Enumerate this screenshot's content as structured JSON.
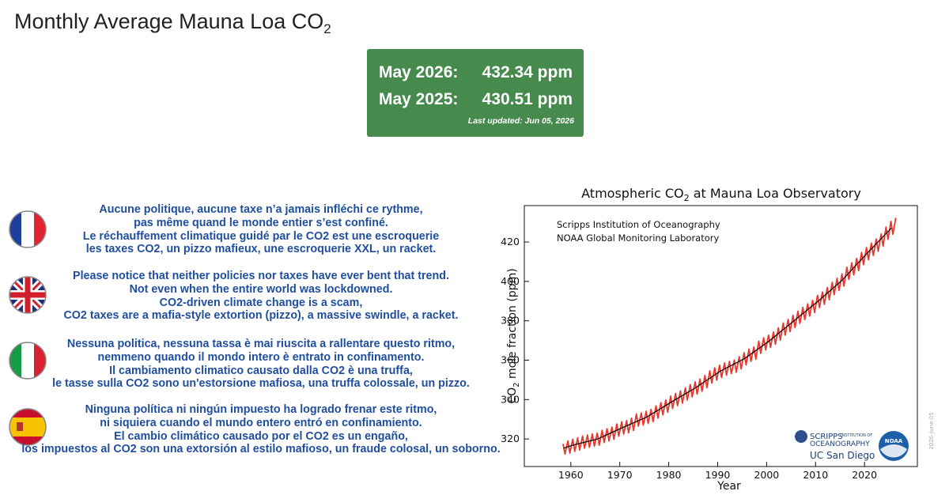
{
  "header": {
    "title": [
      "Monthly Average Mauna Loa CO",
      "2"
    ]
  },
  "status_box": {
    "rows": [
      [
        "May 2026:",
        "432.34 ppm"
      ],
      [
        "May 2025:",
        "430.51 ppm"
      ]
    ],
    "updated": "Last updated: Jun 05, 2026"
  },
  "messages": [
    [
      "Aucune politique, aucune taxe n’a jamais infléchi ce rythme,",
      "pas même quand le monde entier s’est confiné.",
      "Le réchauffement climatique guidé par le CO2 est une escroquerie",
      "les taxes CO2, un pizzo mafieux, une escroquerie XXL, un racket."
    ],
    [
      "Please notice that neither policies nor taxes have ever bent that trend.",
      "Not even when the entire world was lockdowned.",
      "CO2-driven climate change is a scam,",
      "CO2 taxes are a mafia-style extortion (pizzo), a massive swindle, a racket."
    ],
    [
      "Nessuna politica, nessuna tassa è mai riuscita a rallentare questo ritmo,",
      "nemmeno quando il mondo intero è entrato in confinamento.",
      "Il cambiamento climatico causato dalla CO2 è una truffa,",
      "le tasse sulla CO2 sono un'estorsione mafiosa, una truffa colossale, un pizzo."
    ],
    [
      "Ninguna política ni ningún impuesto ha logrado frenar este ritmo,",
      "ni siquiera cuando el mundo entero entró en confinamiento.",
      "El cambio climático causado por el CO2 es un engaño,",
      "los impuestos al CO2 son una extorsión al estilo mafioso, un fraude colosal, un soborno."
    ]
  ],
  "chart_logos": {
    "scripps": [
      "SCRIPPS",
      "INSTITUTION OF",
      "OCEANOGRAPHY"
    ],
    "ucsd": "UC San Diego",
    "noaa": "NOAA",
    "watermark": "2026-June-05"
  },
  "chart_data": {
    "type": "line",
    "title": [
      "Atmospheric CO",
      "2",
      " at Mauna Loa Observatory"
    ],
    "x_label": "Year",
    "y_label": [
      "CO",
      "2",
      " mole fraction (ppm)"
    ],
    "annotations": [
      "Scripps Institution of Oceanography",
      "NOAA Global Monitoring Laboratory"
    ],
    "xlim": [
      1950.5,
      2030.8
    ],
    "ylim": [
      306,
      438.5
    ],
    "xticks": [
      1960,
      1970,
      1980,
      1990,
      2000,
      2010,
      2020
    ],
    "yticks": [
      320,
      340,
      360,
      380,
      400,
      420
    ],
    "series": [
      {
        "color": "#e8372c",
        "x": [
          1958.4,
          1958.8,
          1959.4,
          1959.8,
          1960.4,
          1960.8,
          1961.4,
          1961.8,
          1962.4,
          1962.8,
          1963.4,
          1963.8,
          1964.4,
          1964.8,
          1965.4,
          1965.8,
          1966.4,
          1966.8,
          1967.4,
          1967.8,
          1968.4,
          1968.8,
          1969.4,
          1969.8,
          1970.4,
          1970.8,
          1971.4,
          1971.8,
          1972.4,
          1972.8,
          1973.4,
          1973.8,
          1974.4,
          1974.8,
          1975.4,
          1975.8,
          1976.4,
          1976.8,
          1977.4,
          1977.8,
          1978.4,
          1978.8,
          1979.4,
          1979.8,
          1980.4,
          1980.8,
          1981.4,
          1981.8,
          1982.4,
          1982.8,
          1983.4,
          1983.8,
          1984.4,
          1984.8,
          1985.4,
          1985.8,
          1986.4,
          1986.8,
          1987.4,
          1987.8,
          1988.4,
          1988.8,
          1989.4,
          1989.8,
          1990.4,
          1990.8,
          1991.4,
          1991.8,
          1992.4,
          1992.8,
          1993.4,
          1993.8,
          1994.4,
          1994.8,
          1995.4,
          1995.8,
          1996.4,
          1996.8,
          1997.4,
          1997.8,
          1998.4,
          1998.8,
          1999.4,
          1999.8,
          2000.4,
          2000.8,
          2001.4,
          2001.8,
          2002.4,
          2002.8,
          2003.4,
          2003.8,
          2004.4,
          2004.8,
          2005.4,
          2005.8,
          2006.4,
          2006.8,
          2007.4,
          2007.8,
          2008.4,
          2008.8,
          2009.4,
          2009.8,
          2010.4,
          2010.8,
          2011.4,
          2011.8,
          2012.4,
          2012.8,
          2013.4,
          2013.8,
          2014.4,
          2014.8,
          2015.4,
          2015.8,
          2016.4,
          2016.8,
          2017.4,
          2017.8,
          2018.4,
          2018.8,
          2019.4,
          2019.8,
          2020.4,
          2020.8,
          2021.4,
          2021.8,
          2022.4,
          2022.8,
          2023.4,
          2023.8,
          2024.4,
          2024.8,
          2025.4,
          2025.8,
          2026.4
        ],
        "values": [
          317.5,
          312.4,
          319.0,
          312.8,
          319.9,
          313.7,
          320.6,
          314.4,
          321.5,
          315.3,
          322.0,
          315.8,
          322.6,
          316.4,
          323.0,
          316.8,
          324.4,
          318.2,
          325.2,
          319.0,
          326.0,
          319.8,
          327.6,
          321.4,
          328.7,
          322.5,
          329.3,
          323.1,
          330.5,
          324.3,
          332.7,
          326.5,
          333.2,
          327.0,
          334.1,
          327.9,
          335.0,
          328.8,
          336.8,
          330.6,
          338.4,
          332.2,
          339.8,
          333.6,
          341.7,
          335.5,
          343.1,
          336.9,
          344.4,
          338.2,
          346.0,
          339.8,
          347.6,
          341.4,
          349.0,
          342.8,
          350.4,
          344.2,
          352.2,
          346.0,
          354.6,
          348.4,
          356.1,
          349.9,
          357.4,
          351.2,
          358.6,
          352.4,
          359.4,
          353.2,
          360.1,
          353.9,
          361.8,
          355.6,
          363.8,
          357.6,
          365.6,
          359.4,
          366.7,
          360.5,
          369.7,
          363.5,
          371.4,
          365.2,
          372.7,
          366.5,
          374.3,
          368.1,
          376.4,
          370.2,
          378.9,
          372.7,
          380.7,
          374.5,
          382.8,
          376.6,
          384.9,
          378.7,
          386.8,
          380.6,
          388.6,
          382.4,
          390.4,
          384.2,
          392.9,
          386.7,
          394.6,
          388.4,
          396.9,
          390.7,
          399.5,
          393.3,
          401.6,
          395.4,
          403.8,
          397.6,
          407.2,
          401.0,
          409.5,
          403.3,
          411.7,
          405.5,
          414.7,
          408.5,
          417.2,
          411.0,
          419.4,
          413.2,
          421.5,
          415.3,
          424.1,
          417.9,
          427.6,
          421.4,
          430.5,
          423.9,
          432.3
        ]
      },
      {
        "color": "#000000",
        "x": [
          1958.5,
          1960.5,
          1965.5,
          1970.5,
          1975.5,
          1980.5,
          1985.5,
          1990.5,
          1995.5,
          2000.5,
          2005.5,
          2010.5,
          2015.5,
          2020.5,
          2025.5
        ],
        "values": [
          315.3,
          316.9,
          320.0,
          325.7,
          331.1,
          338.7,
          346.0,
          354.4,
          360.8,
          369.7,
          379.8,
          389.9,
          400.8,
          414.2,
          427.1
        ]
      }
    ]
  }
}
